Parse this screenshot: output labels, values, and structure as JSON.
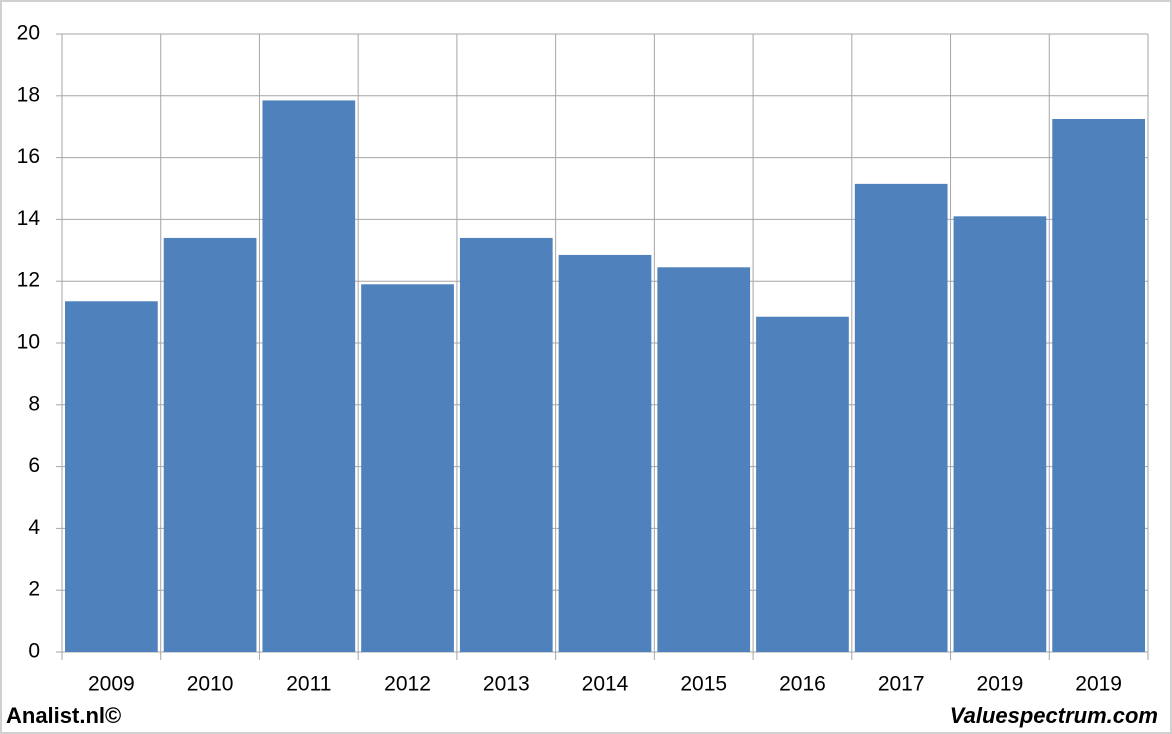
{
  "chart_data": {
    "type": "bar",
    "categories": [
      "2009",
      "2010",
      "2011",
      "2012",
      "2013",
      "2014",
      "2015",
      "2016",
      "2017",
      "2019",
      "2019"
    ],
    "values": [
      11.35,
      13.4,
      17.85,
      11.9,
      13.4,
      12.85,
      12.45,
      10.85,
      15.15,
      14.1,
      17.25
    ],
    "color": "#4f81bd",
    "ylim": [
      0,
      20
    ],
    "yticks": [
      0,
      2,
      4,
      6,
      8,
      10,
      12,
      14,
      16,
      18,
      20
    ],
    "grid": true,
    "footer_left": "Analist.nl©",
    "footer_right": "Valuespectrum.com"
  }
}
